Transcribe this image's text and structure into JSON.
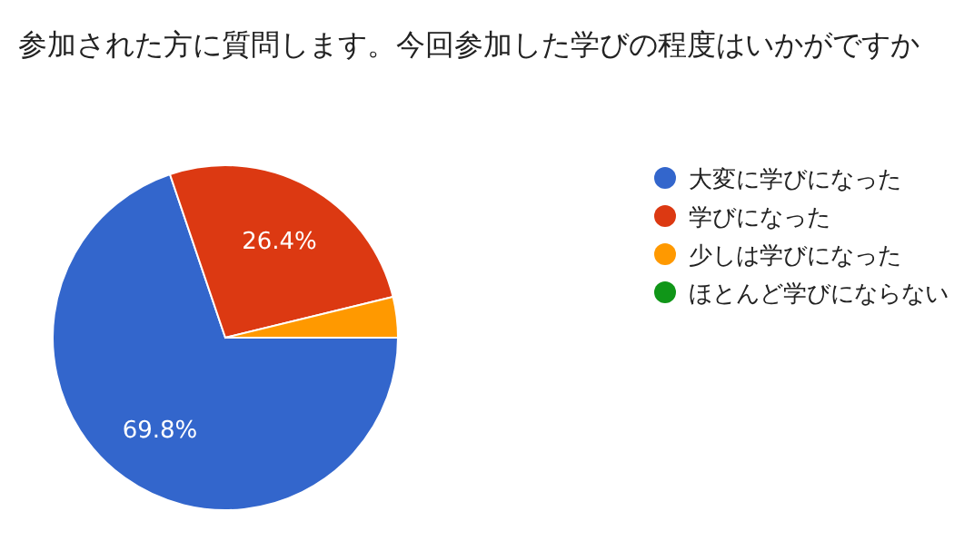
{
  "chart_data": {
    "type": "pie",
    "title": "参加された方に質問します。今回参加した学びの程度はいかがですか",
    "categories": [
      "大変に学びになった",
      "学びになった",
      "少しは学びになった",
      "ほとんど学びにならない"
    ],
    "values": [
      69.8,
      26.4,
      3.8,
      0
    ],
    "colors": [
      "#3366cc",
      "#dc3912",
      "#ff9900",
      "#109618"
    ],
    "value_labels": [
      "69.8%",
      "26.4%",
      null,
      null
    ],
    "legend": "right"
  }
}
